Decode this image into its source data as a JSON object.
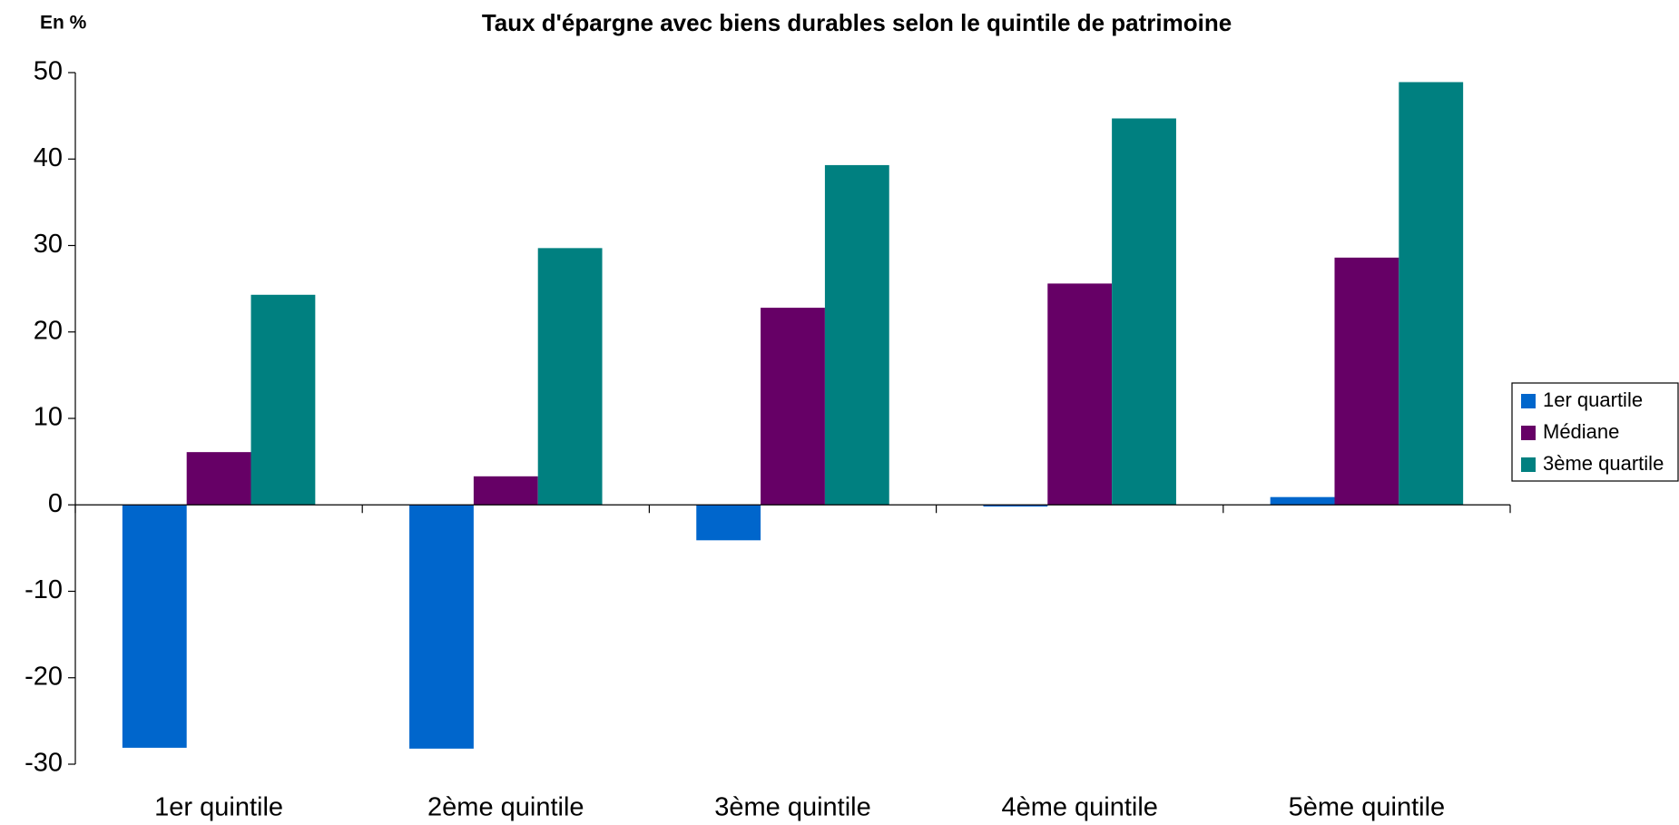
{
  "chart_data": {
    "type": "bar",
    "title": "Taux d'épargne avec biens durables selon le quintile de patrimoine",
    "y_label": "En %",
    "categories": [
      "1er quintile",
      "2ème quintile",
      "3ème quintile",
      "4ème quintile",
      "5ème quintile"
    ],
    "series": [
      {
        "name": "1er quartile",
        "color": "#0066cc",
        "values": [
          -28.1,
          -28.2,
          -4.1,
          -0.2,
          0.9
        ]
      },
      {
        "name": "Médiane",
        "color": "#660066",
        "values": [
          6.1,
          3.3,
          22.8,
          25.6,
          28.6
        ]
      },
      {
        "name": "3ème quartile",
        "color": "#008080",
        "values": [
          24.3,
          29.7,
          39.3,
          44.7,
          48.9
        ]
      }
    ],
    "ylim": [
      -30,
      50
    ],
    "yticks": [
      -30,
      -20,
      -10,
      0,
      10,
      20,
      30,
      40,
      50
    ],
    "grid": false,
    "legend": "right"
  }
}
